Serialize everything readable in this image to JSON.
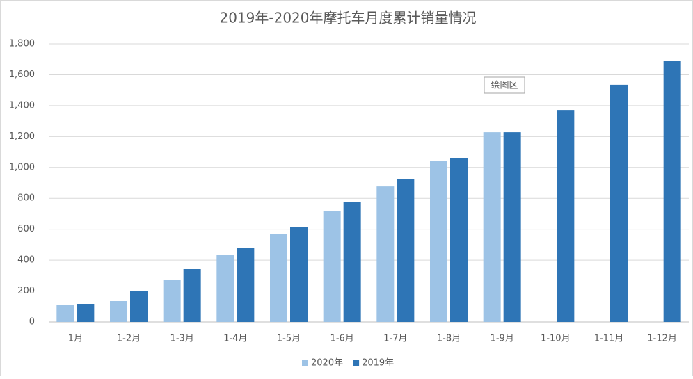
{
  "chart_data": {
    "type": "bar",
    "title": "2019年-2020年摩托车月度累计销量情况",
    "categories": [
      "1月",
      "1-2月",
      "1-3月",
      "1-4月",
      "1-5月",
      "1-6月",
      "1-7月",
      "1-8月",
      "1-9月",
      "1-10月",
      "1-11月",
      "1-12月"
    ],
    "series": [
      {
        "name": "2020年",
        "color": "#9dc3e6",
        "values": [
          108,
          135,
          270,
          432,
          571,
          720,
          877,
          1040,
          1228,
          null,
          null,
          null
        ]
      },
      {
        "name": "2019年",
        "color": "#2e75b6",
        "values": [
          117,
          198,
          342,
          477,
          616,
          774,
          927,
          1062,
          1228,
          1372,
          1535,
          1692
        ]
      }
    ],
    "ylim": [
      0,
      1800
    ],
    "yticks": [
      0,
      200,
      400,
      600,
      800,
      {
        "value": 1000,
        "label": "1,000"
      },
      {
        "value": 1200,
        "label": "1,200"
      },
      {
        "value": 1400,
        "label": "1,400"
      },
      {
        "value": 1600,
        "label": "1,600"
      },
      {
        "value": 1800,
        "label": "1,800"
      }
    ],
    "grid": true,
    "legend": "bottom",
    "annotation": "绘图区"
  }
}
